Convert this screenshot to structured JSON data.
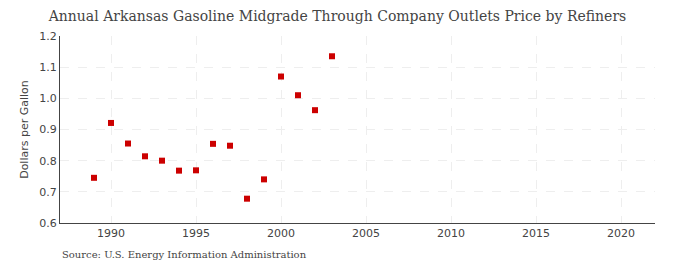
{
  "chart_data": {
    "type": "scatter",
    "title": "Annual Arkansas Gasoline Midgrade Through Company Outlets Price by Refiners",
    "y_label": "Dollars per Gallon",
    "annotations": [
      "Source: U.S. Energy Information Administration"
    ],
    "x": [
      1989,
      1990,
      1991,
      1992,
      1993,
      1994,
      1995,
      1996,
      1997,
      1998,
      1999,
      2000,
      2001,
      2002,
      2003
    ],
    "values": [
      0.745,
      0.921,
      0.855,
      0.814,
      0.8,
      0.768,
      0.769,
      0.854,
      0.848,
      0.678,
      0.74,
      1.07,
      1.01,
      0.962,
      1.135
    ],
    "color": "#cc0000",
    "marker": "square",
    "xlim": [
      1987,
      2022
    ],
    "ylim": [
      0.6,
      1.2
    ],
    "xticks": [
      1990,
      1995,
      2000,
      2005,
      2010,
      2015,
      2020
    ],
    "yticks": [
      0.6,
      0.7,
      0.8,
      0.9,
      {
        "value": 1.0,
        "label": "1.0"
      },
      1.1,
      1.2
    ],
    "grid": true
  }
}
